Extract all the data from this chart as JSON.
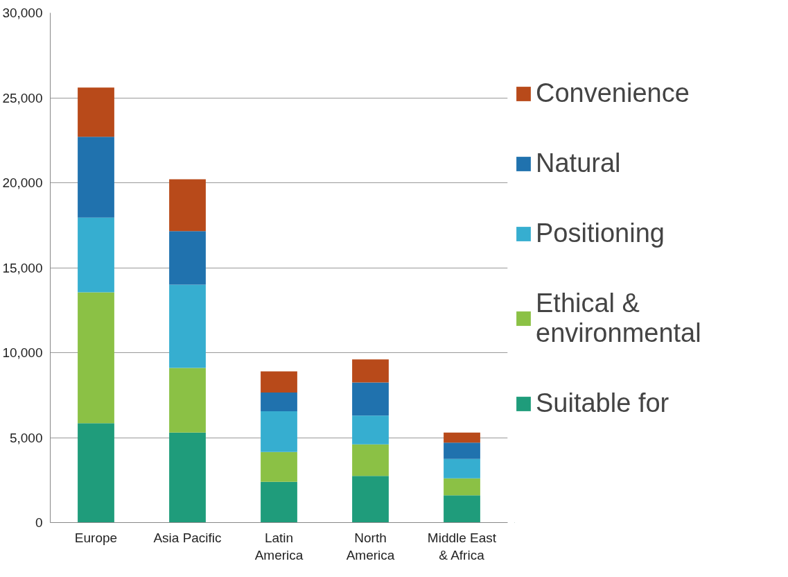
{
  "chart_data": {
    "type": "bar",
    "stacked": true,
    "categories": [
      "Europe",
      "Asia Pacific",
      "Latin America",
      "North America",
      "Middle East & Africa"
    ],
    "series": [
      {
        "name": "Suitable for",
        "color": "#1f9c7b",
        "values": [
          5850,
          5300,
          2400,
          2750,
          1600
        ]
      },
      {
        "name": "Ethical & environmental",
        "color": "#8bc145",
        "values": [
          7700,
          3800,
          1750,
          1850,
          1000
        ]
      },
      {
        "name": "Positioning",
        "color": "#36aed0",
        "values": [
          4400,
          4900,
          2400,
          1700,
          1150
        ]
      },
      {
        "name": "Natural",
        "color": "#2072ae",
        "values": [
          4750,
          3150,
          1100,
          1950,
          950
        ]
      },
      {
        "name": "Convenience",
        "color": "#b84a1a",
        "values": [
          2900,
          3050,
          1250,
          1350,
          600
        ]
      }
    ],
    "ylim": [
      0,
      30000
    ],
    "yticks": [
      {
        "value": 0,
        "label": "0"
      },
      {
        "value": 5000,
        "label": "5,000"
      },
      {
        "value": 10000,
        "label": "10,000"
      },
      {
        "value": 15000,
        "label": "15,000"
      },
      {
        "value": 20000,
        "label": "20,000"
      },
      {
        "value": 25000,
        "label": "25,000"
      },
      {
        "value": 30000,
        "label": "30,000"
      }
    ],
    "grid": "y",
    "legend": "right"
  }
}
